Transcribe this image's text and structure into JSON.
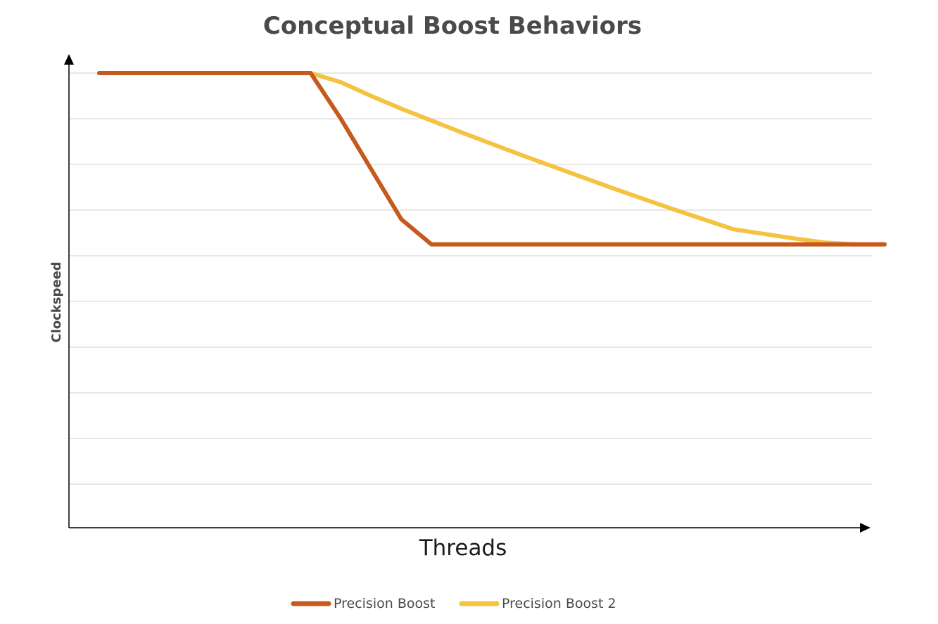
{
  "chart_data": {
    "type": "line",
    "title": "Conceptual Boost Behaviors",
    "xlabel": "Threads",
    "ylabel": "Clockspeed",
    "x": [
      0,
      1,
      2,
      3,
      4,
      5,
      6,
      7,
      8,
      9,
      10,
      11,
      12,
      13,
      14,
      15,
      16,
      17,
      18,
      19,
      20,
      21,
      22,
      23,
      24,
      25,
      26
    ],
    "xlim": [
      -1,
      25.6
    ],
    "ylim": [
      0,
      10
    ],
    "show_tick_labels": false,
    "grid": true,
    "legend_position": "bottom",
    "series": [
      {
        "name": "Precision Boost",
        "color": "#c65a1e",
        "values": [
          10,
          10,
          10,
          10,
          10,
          10,
          10,
          10,
          9.0,
          7.9,
          6.8,
          6.25,
          6.25,
          6.25,
          6.25,
          6.25,
          6.25,
          6.25,
          6.25,
          6.25,
          6.25,
          6.25,
          6.25,
          6.25,
          6.25,
          6.25,
          6.25
        ]
      },
      {
        "name": "Precision Boost 2",
        "color": "#f5c242",
        "values": [
          10,
          10,
          10,
          10,
          10,
          10,
          10,
          10,
          9.8,
          9.5,
          9.22,
          8.96,
          8.7,
          8.45,
          8.2,
          7.96,
          7.72,
          7.48,
          7.25,
          7.02,
          6.8,
          6.58,
          6.48,
          6.38,
          6.29,
          6.25,
          6.25
        ]
      }
    ]
  }
}
